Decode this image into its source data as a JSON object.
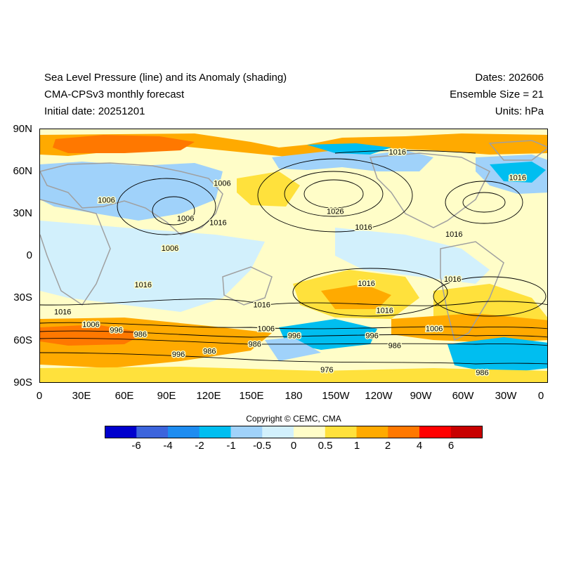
{
  "header": {
    "title_line1": "Sea Level Pressure (line) and its Anomaly (shading)",
    "title_line2": "CMA-CPSv3 monthly forecast",
    "title_line3": "Initial date: 20251201",
    "dates": "Dates: 202606",
    "ensemble": "Ensemble Size = 21",
    "units": "Units: hPa"
  },
  "axes": {
    "lat_labels": [
      "90N",
      "60N",
      "30N",
      "0",
      "30S",
      "60S",
      "90S"
    ],
    "lon_labels": [
      "0",
      "30E",
      "60E",
      "90E",
      "120E",
      "150E",
      "180",
      "150W",
      "120W",
      "90W",
      "60W",
      "30W",
      "0"
    ]
  },
  "contour_labels": [
    {
      "text": "1016",
      "lon": 126,
      "lat": 24
    },
    {
      "text": "1026",
      "lon": 209,
      "lat": 32
    },
    {
      "text": "1016",
      "lon": 229,
      "lat": 21
    },
    {
      "text": "1016",
      "lon": 253,
      "lat": 74
    },
    {
      "text": "1016",
      "lon": 338,
      "lat": 56
    },
    {
      "text": "1016",
      "lon": 293,
      "lat": 16
    },
    {
      "text": "1006",
      "lon": 129,
      "lat": 52
    },
    {
      "text": "1006",
      "lon": 47,
      "lat": 40
    },
    {
      "text": "1006",
      "lon": 103,
      "lat": 27
    },
    {
      "text": "1006",
      "lon": 92,
      "lat": 6
    },
    {
      "text": "1016",
      "lon": 73,
      "lat": -20
    },
    {
      "text": "1016",
      "lon": 157,
      "lat": -34
    },
    {
      "text": "1016",
      "lon": 16,
      "lat": -39
    },
    {
      "text": "1016",
      "lon": 292,
      "lat": -16
    },
    {
      "text": "1016",
      "lon": 231,
      "lat": -19
    },
    {
      "text": "1016",
      "lon": 244,
      "lat": -38
    },
    {
      "text": "1006",
      "lon": 36,
      "lat": -48
    },
    {
      "text": "996",
      "lon": 54,
      "lat": -52
    },
    {
      "text": "986",
      "lon": 71,
      "lat": -55
    },
    {
      "text": "1006",
      "lon": 160,
      "lat": -51
    },
    {
      "text": "996",
      "lon": 180,
      "lat": -56
    },
    {
      "text": "996",
      "lon": 235,
      "lat": -56
    },
    {
      "text": "986",
      "lon": 152,
      "lat": -62
    },
    {
      "text": "986",
      "lon": 251,
      "lat": -63
    },
    {
      "text": "1006",
      "lon": 279,
      "lat": -51
    },
    {
      "text": "996",
      "lon": 98,
      "lat": -69
    },
    {
      "text": "986",
      "lon": 120,
      "lat": -67
    },
    {
      "text": "976",
      "lon": 203,
      "lat": -80
    },
    {
      "text": "986",
      "lon": 313,
      "lat": -82
    }
  ],
  "colors": {
    "frame": "#000000",
    "contour": "#000000",
    "coastline": "#a0a0a0",
    "background_anomaly": "#fffdc8"
  },
  "colorbar": {
    "colors": [
      "#0000cd",
      "#3c64dc",
      "#1e8cf0",
      "#00bef0",
      "#a0d2fa",
      "#d2f0fc",
      "#fffdc8",
      "#ffe13c",
      "#ffaa00",
      "#ff7800",
      "#ff0000",
      "#c80000"
    ],
    "ticks": [
      "-6",
      "-4",
      "-2",
      "-1",
      "-0.5",
      "0",
      "0.5",
      "1",
      "2",
      "4",
      "6"
    ]
  },
  "copyright": "Copyright © CEMC, CMA"
}
